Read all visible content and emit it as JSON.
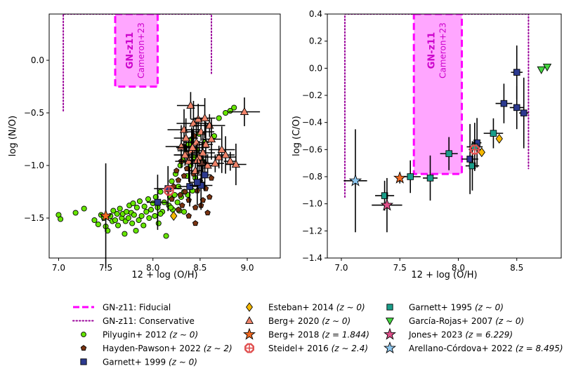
{
  "chart_data": [
    {
      "type": "scatter",
      "title": "",
      "xlabel": "12 + log (O/H)",
      "ylabel": "log (N/O)",
      "xlim": [
        6.9,
        9.35
      ],
      "ylim": [
        -1.88,
        0.44
      ],
      "xticks": [
        7.0,
        7.5,
        8.0,
        8.5,
        9.0
      ],
      "xtick_labels": [
        "7.0",
        "7.5",
        "8.0",
        "8.5",
        "9.0"
      ],
      "yticks": [
        0.0,
        -0.5,
        -1.0,
        -1.5
      ],
      "ytick_labels": [
        "0.0",
        "−0.5",
        "−1.0",
        "−1.5"
      ],
      "regions": {
        "fiducial": {
          "x": [
            7.6,
            8.05
          ],
          "y": [
            -0.25,
            0.44
          ],
          "label": "GN-z11",
          "sublabel": "Cameron+23"
        },
        "conservative": {
          "points": [
            [
              7.05,
              -0.48
            ],
            [
              7.05,
              0.44
            ],
            [
              8.62,
              0.44
            ],
            [
              8.62,
              -0.13
            ]
          ]
        }
      },
      "series": [
        {
          "name": "Pilyugin+ 2012",
          "marker": "circle",
          "color": "#66e600",
          "points": [
            [
              7.0,
              -1.47
            ],
            [
              7.02,
              -1.51
            ],
            [
              7.18,
              -1.45
            ],
            [
              7.27,
              -1.41
            ],
            [
              7.38,
              -1.52
            ],
            [
              7.42,
              -1.56
            ],
            [
              7.45,
              -1.47
            ],
            [
              7.48,
              -1.5
            ],
            [
              7.5,
              -1.58
            ],
            [
              7.52,
              -1.62
            ],
            [
              7.55,
              -1.48
            ],
            [
              7.57,
              -1.53
            ],
            [
              7.58,
              -1.43
            ],
            [
              7.6,
              -1.52
            ],
            [
              7.62,
              -1.46
            ],
            [
              7.63,
              -1.57
            ],
            [
              7.65,
              -1.41
            ],
            [
              7.67,
              -1.5
            ],
            [
              7.68,
              -1.46
            ],
            [
              7.7,
              -1.65
            ],
            [
              7.71,
              -1.53
            ],
            [
              7.72,
              -1.44
            ],
            [
              7.74,
              -1.5
            ],
            [
              7.75,
              -1.38
            ],
            [
              7.77,
              -1.45
            ],
            [
              7.78,
              -1.55
            ],
            [
              7.79,
              -1.36
            ],
            [
              7.8,
              -1.47
            ],
            [
              7.82,
              -1.62
            ],
            [
              7.83,
              -1.4
            ],
            [
              7.85,
              -1.52
            ],
            [
              7.86,
              -1.34
            ],
            [
              7.88,
              -1.48
            ],
            [
              7.9,
              -1.57
            ],
            [
              7.91,
              -1.39
            ],
            [
              7.93,
              -1.44
            ],
            [
              7.95,
              -1.32
            ],
            [
              7.96,
              -1.5
            ],
            [
              7.98,
              -1.42
            ],
            [
              8.0,
              -1.36
            ],
            [
              8.02,
              -1.48
            ],
            [
              8.03,
              -1.3
            ],
            [
              8.05,
              -1.4
            ],
            [
              8.06,
              -1.55
            ],
            [
              8.08,
              -1.25
            ],
            [
              8.1,
              -1.44
            ],
            [
              8.12,
              -1.35
            ],
            [
              8.14,
              -1.67
            ],
            [
              8.15,
              -1.22
            ],
            [
              8.17,
              -1.38
            ],
            [
              8.18,
              -1.3
            ],
            [
              8.2,
              -1.15
            ],
            [
              8.21,
              -1.42
            ],
            [
              8.23,
              -1.28
            ],
            [
              8.24,
              -1.08
            ],
            [
              8.26,
              -1.35
            ],
            [
              8.27,
              -1.2
            ],
            [
              8.29,
              -1.0
            ],
            [
              8.3,
              -1.3
            ],
            [
              8.32,
              -0.95
            ],
            [
              8.33,
              -1.25
            ],
            [
              8.35,
              -0.88
            ],
            [
              8.36,
              -1.1
            ],
            [
              8.38,
              -0.8
            ],
            [
              8.4,
              -1.0
            ],
            [
              8.41,
              -0.75
            ],
            [
              8.43,
              -0.92
            ],
            [
              8.45,
              -1.12
            ],
            [
              8.47,
              -0.85
            ],
            [
              8.49,
              -0.7
            ],
            [
              8.52,
              -0.95
            ],
            [
              8.55,
              -0.78
            ],
            [
              8.6,
              -0.62
            ],
            [
              8.65,
              -0.72
            ],
            [
              8.7,
              -0.55
            ],
            [
              8.77,
              -0.5
            ],
            [
              8.82,
              -0.48
            ],
            [
              8.86,
              -0.45
            ],
            [
              8.42,
              -1.24
            ],
            [
              8.37,
              -1.28
            ],
            [
              8.33,
              -1.44
            ],
            [
              8.28,
              -1.43
            ],
            [
              8.08,
              -1.46
            ],
            [
              8.19,
              -1.4
            ]
          ]
        },
        {
          "name": "Hayden-Pawson+ 2022",
          "marker": "pentagon",
          "color": "#7a3412",
          "points": [
            [
              8.2,
              -1.32
            ],
            [
              8.22,
              -1.2
            ],
            [
              8.25,
              -1.05
            ],
            [
              8.27,
              -1.14
            ],
            [
              8.29,
              -1.28
            ],
            [
              8.3,
              -0.96
            ],
            [
              8.31,
              -1.38
            ],
            [
              8.33,
              -1.1
            ],
            [
              8.34,
              -1.25
            ],
            [
              8.35,
              -0.9
            ],
            [
              8.36,
              -1.03
            ],
            [
              8.38,
              -1.33
            ],
            [
              8.4,
              -1.2
            ],
            [
              8.41,
              -0.86
            ],
            [
              8.43,
              -1.08
            ],
            [
              8.45,
              -1.4
            ],
            [
              8.47,
              -1.24
            ],
            [
              8.5,
              -1.15
            ],
            [
              8.53,
              -1.33
            ],
            [
              8.56,
              -1.22
            ],
            [
              8.58,
              -1.45
            ],
            [
              8.6,
              -1.3
            ],
            [
              8.45,
              -1.55
            ],
            [
              8.51,
              -1.38
            ],
            [
              8.38,
              -1.48
            ],
            [
              8.27,
              -1.42
            ],
            [
              8.55,
              -0.98
            ],
            [
              8.62,
              -1.12
            ],
            [
              8.32,
              -0.82
            ],
            [
              8.44,
              -0.72
            ]
          ]
        },
        {
          "name": "Berg+ 2020",
          "marker": "triangle-up",
          "color": "#f0846a",
          "points": [
            [
              8.3,
              -0.82
            ],
            [
              8.33,
              -0.66
            ],
            [
              8.35,
              -0.74
            ],
            [
              8.36,
              -0.9
            ],
            [
              8.38,
              -0.96
            ],
            [
              8.4,
              -0.43
            ],
            [
              8.41,
              -0.86
            ],
            [
              8.43,
              -0.6
            ],
            [
              8.45,
              -1.05
            ],
            [
              8.46,
              -0.78
            ],
            [
              8.48,
              -0.56
            ],
            [
              8.49,
              -0.92
            ],
            [
              8.51,
              -0.68
            ],
            [
              8.52,
              -0.98
            ],
            [
              8.55,
              -0.55
            ],
            [
              8.56,
              -0.8
            ],
            [
              8.58,
              -1.0
            ],
            [
              8.6,
              -0.62
            ],
            [
              8.62,
              -0.75
            ],
            [
              8.66,
              -0.98
            ],
            [
              8.7,
              -0.92
            ],
            [
              8.73,
              -0.85
            ],
            [
              8.77,
              -0.9
            ],
            [
              8.82,
              -0.96
            ],
            [
              8.88,
              -0.99
            ],
            [
              8.97,
              -0.49
            ],
            [
              8.34,
              -0.9
            ],
            [
              8.42,
              -0.83
            ],
            [
              8.47,
              -0.95
            ],
            [
              8.53,
              -0.88
            ]
          ]
        },
        {
          "name": "Garnett+ 1999",
          "marker": "square",
          "color": "#2c3a8f",
          "points": [
            [
              8.05,
              -1.35
            ],
            [
              8.16,
              -1.22
            ],
            [
              8.39,
              -1.2
            ],
            [
              8.51,
              -1.19
            ],
            [
              8.47,
              -1.16
            ],
            [
              8.55,
              -1.09
            ]
          ],
          "xerr": 0.1,
          "yerr": 0.2
        },
        {
          "name": "Berg+ 2018",
          "marker": "star",
          "color": "#f26a22",
          "points": [
            [
              7.5,
              -1.48
            ]
          ]
        },
        {
          "name": "Esteban+ 2014",
          "marker": "diamond",
          "color": "#f5b800",
          "points": [
            [
              8.22,
              -1.48
            ]
          ]
        },
        {
          "name": "Steidel+ 2016",
          "marker": "octagon",
          "color": "#e05050",
          "points": [
            [
              8.17,
              -1.24
            ]
          ]
        }
      ]
    },
    {
      "type": "scatter",
      "title": "",
      "xlabel": "12 + log (O/H)",
      "ylabel": "log (C/O)",
      "xlim": [
        6.88,
        8.88
      ],
      "ylim": [
        -1.4,
        0.4
      ],
      "xticks": [
        7.0,
        7.5,
        8.0,
        8.5
      ],
      "xtick_labels": [
        "7.0",
        "7.5",
        "8.0",
        "8.5"
      ],
      "yticks": [
        0.4,
        0.2,
        0.0,
        -0.2,
        -0.4,
        -0.6,
        -0.8,
        -1.0,
        -1.2,
        -1.4
      ],
      "ytick_labels": [
        "0.4",
        "0.2",
        "0.0",
        "−0.2",
        "−0.4",
        "−0.6",
        "−0.8",
        "−1.0",
        "−1.2",
        "−1.4"
      ],
      "regions": {
        "fiducial": {
          "x": [
            7.62,
            8.03
          ],
          "y": [
            -0.78,
            0.4
          ],
          "label": "GN-z11",
          "sublabel": "Cameron+23"
        },
        "conservative": {
          "points": [
            [
              7.03,
              -0.95
            ],
            [
              7.03,
              0.4
            ],
            [
              8.6,
              0.4
            ],
            [
              8.6,
              -0.74
            ]
          ]
        }
      },
      "series": [
        {
          "name": "Garnett+ 1999",
          "marker": "square",
          "color": "#2c3a8f",
          "points": [
            [
              8.1,
              -0.67
            ],
            [
              8.16,
              -0.55
            ],
            [
              8.39,
              -0.26
            ],
            [
              8.5,
              -0.03
            ],
            [
              8.5,
              -0.29
            ],
            [
              8.56,
              -0.33
            ]
          ],
          "xerr": 0.05,
          "yerr": 0.18
        },
        {
          "name": "Garnett+ 1995",
          "marker": "square",
          "color": "#1a9e8a",
          "points": [
            [
              7.37,
              -0.94
            ],
            [
              7.59,
              -0.8
            ],
            [
              7.76,
              -0.81
            ],
            [
              7.92,
              -0.63
            ],
            [
              8.12,
              -0.72
            ],
            [
              8.14,
              -0.58
            ],
            [
              8.3,
              -0.48
            ]
          ],
          "xerr": 0.08,
          "yerr": 0.13
        },
        {
          "name": "Esteban+ 2014",
          "marker": "diamond",
          "color": "#f5b800",
          "points": [
            [
              8.2,
              -0.62
            ],
            [
              8.35,
              -0.52
            ]
          ]
        },
        {
          "name": "Berg+ 2018",
          "marker": "star",
          "color": "#f26a22",
          "points": [
            [
              7.5,
              -0.81
            ]
          ]
        },
        {
          "name": "Steidel+ 2016",
          "marker": "octagon",
          "color": "#e05050",
          "points": [
            [
              8.14,
              -0.6
            ]
          ]
        },
        {
          "name": "García-Rojas+ 2007",
          "marker": "triangle-down",
          "color": "#44d640",
          "points": [
            [
              8.71,
              -0.01
            ],
            [
              8.76,
              0.01
            ]
          ]
        },
        {
          "name": "Jones+ 2023",
          "marker": "star",
          "color": "#e0508a",
          "points": [
            [
              7.39,
              -1.01
            ]
          ]
        },
        {
          "name": "Arellano-Córdova+ 2022",
          "marker": "star",
          "color": "#8ec8f0",
          "points": [
            [
              7.12,
              -0.83
            ]
          ]
        }
      ]
    }
  ],
  "legend": {
    "placement": "bottom",
    "columns": [
      [
        {
          "name": "GN-z11: Fiducial",
          "style": "dashed-line",
          "color": "#ff00ff"
        },
        {
          "name": "GN-z11: Conservative",
          "style": "dotted-line",
          "color": "#990099"
        },
        {
          "name": "Pilyugin+ 2012",
          "redshift": "(z ∼ 0)",
          "marker": "circle",
          "color": "#66e600"
        },
        {
          "name": "Hayden-Pawson+ 2022",
          "redshift": "(z ∼ 2)",
          "marker": "pentagon",
          "color": "#7a3412"
        },
        {
          "name": "Garnett+ 1999",
          "redshift": "(z ∼ 0)",
          "marker": "square",
          "color": "#2c3a8f"
        }
      ],
      [
        {
          "name": "Esteban+ 2014",
          "redshift": "(z ∼ 0)",
          "marker": "diamond",
          "color": "#f5b800"
        },
        {
          "name": "Berg+ 2020",
          "redshift": "(z ∼ 0)",
          "marker": "triangle-up",
          "color": "#f0846a"
        },
        {
          "name": "Berg+ 2018",
          "redshift": "(z = 1.844)",
          "marker": "star",
          "color": "#f26a22"
        },
        {
          "name": "Steidel+ 2016",
          "redshift": "(z ∼ 2.4)",
          "marker": "octagon",
          "color": "#e05050"
        }
      ],
      [
        {
          "name": "Garnett+ 1995",
          "redshift": "(z ∼ 0)",
          "marker": "square",
          "color": "#1a9e8a"
        },
        {
          "name": "García-Rojas+ 2007",
          "redshift": "(z ∼ 0)",
          "marker": "triangle-down",
          "color": "#44d640"
        },
        {
          "name": "Jones+ 2023",
          "redshift": "(z = 6.229)",
          "marker": "star",
          "color": "#e0508a"
        },
        {
          "name": "Arellano-Córdova+ 2022",
          "redshift": "(z = 8.495)",
          "marker": "star",
          "color": "#8ec8f0"
        }
      ]
    ]
  }
}
